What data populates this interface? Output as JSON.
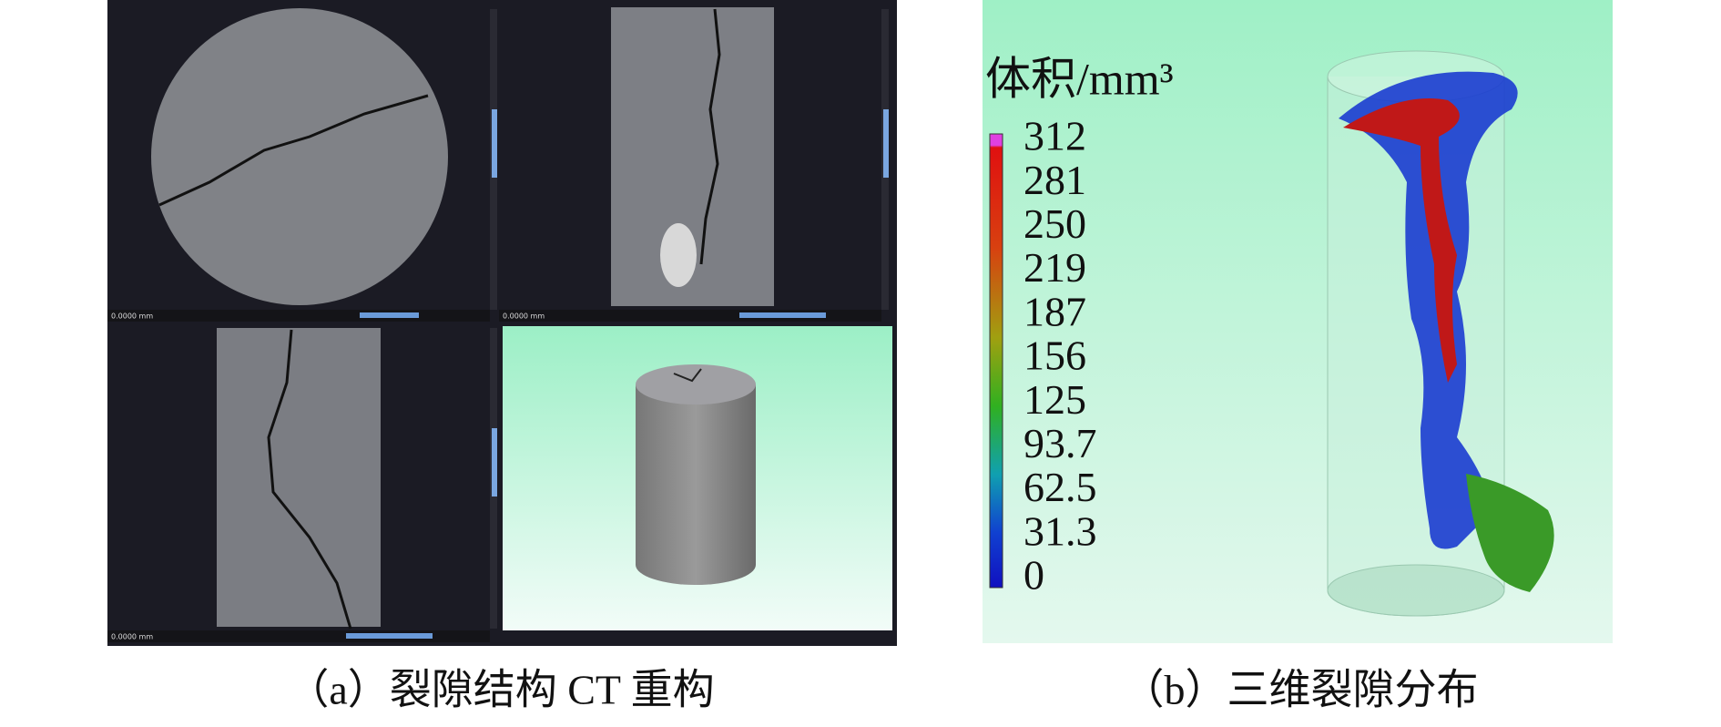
{
  "panel_a": {
    "viewports": [
      {
        "scale_label": "0.0000 mm"
      },
      {
        "scale_label": "0.0000 mm"
      },
      {
        "scale_label": "0.0000 mm"
      }
    ],
    "caption": "（a）裂隙结构 CT 重构"
  },
  "panel_b": {
    "colorbar": {
      "title": "体积/mm³",
      "ticks": [
        312,
        281,
        250,
        219,
        187,
        156,
        125,
        93.7,
        62.5,
        31.3,
        0
      ]
    },
    "caption": "（b）三维裂隙分布"
  }
}
